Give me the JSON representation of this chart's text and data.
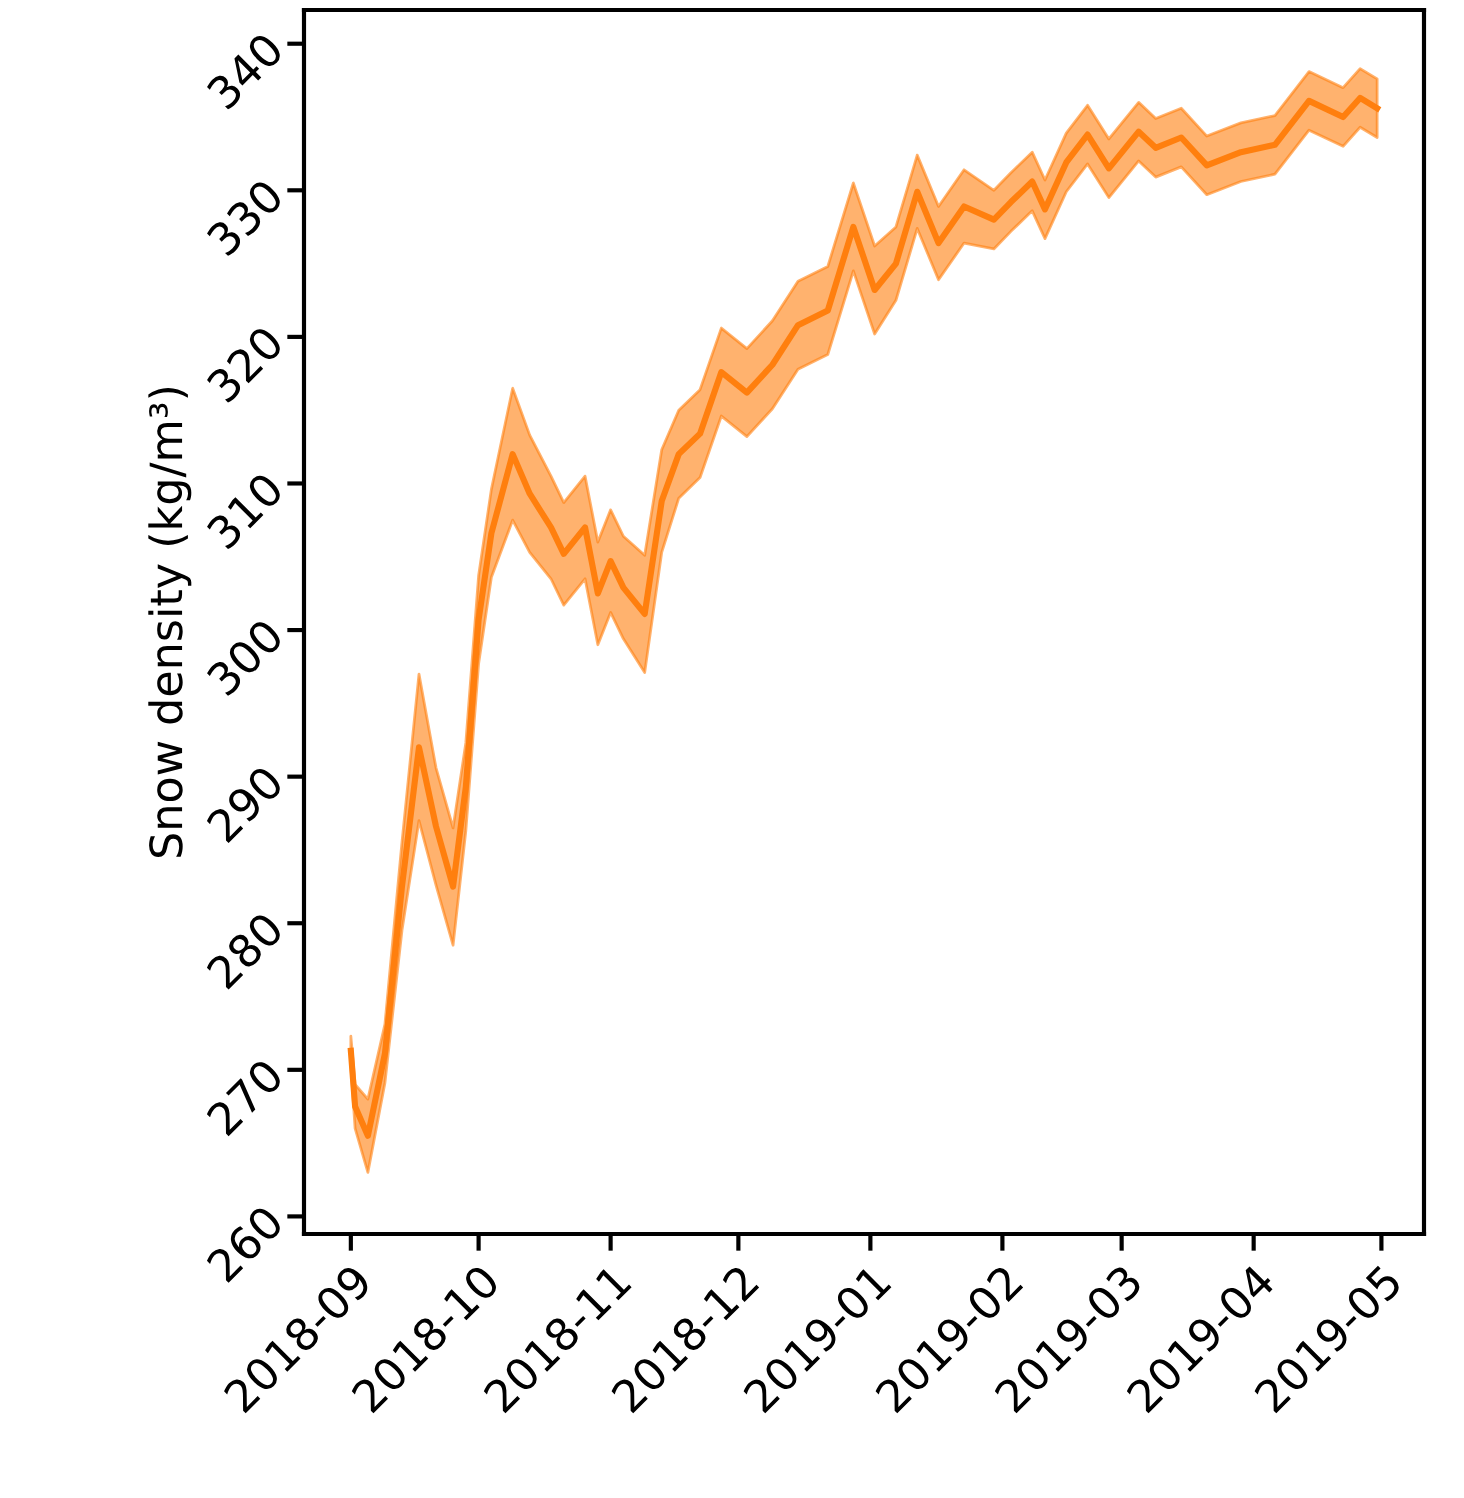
{
  "chart_data": {
    "type": "line",
    "ylabel": "Snow density (kg/m³)",
    "xlim": [
      "2018-08-21",
      "2019-05-11"
    ],
    "ylim": [
      258.8,
      342.3
    ],
    "xticks": [
      {
        "value": "2018-09-01",
        "label": "2018-09"
      },
      {
        "value": "2018-10-01",
        "label": "2018-10"
      },
      {
        "value": "2018-11-01",
        "label": "2018-11"
      },
      {
        "value": "2018-12-01",
        "label": "2018-12"
      },
      {
        "value": "2019-01-01",
        "label": "2019-01"
      },
      {
        "value": "2019-02-01",
        "label": "2019-02"
      },
      {
        "value": "2019-03-01",
        "label": "2019-03"
      },
      {
        "value": "2019-04-01",
        "label": "2019-04"
      },
      {
        "value": "2019-05-01",
        "label": "2019-05"
      }
    ],
    "yticks": [
      260,
      270,
      280,
      290,
      300,
      310,
      320,
      330,
      340
    ],
    "grid": false,
    "legend": false,
    "marker": "none",
    "line_style": "solid",
    "series": [
      {
        "color": "#ff7f0e",
        "x": [
          "2018-09-01",
          "2018-09-02",
          "2018-09-05",
          "2018-09-09",
          "2018-09-13",
          "2018-09-17",
          "2018-09-21",
          "2018-09-25",
          "2018-09-28",
          "2018-10-01",
          "2018-10-04",
          "2018-10-09",
          "2018-10-13",
          "2018-10-18",
          "2018-10-21",
          "2018-10-26",
          "2018-10-29",
          "2018-11-01",
          "2018-11-04",
          "2018-11-09",
          "2018-11-13",
          "2018-11-17",
          "2018-11-22",
          "2018-11-27",
          "2018-12-03",
          "2018-12-09",
          "2018-12-15",
          "2018-12-22",
          "2018-12-28",
          "2019-01-02",
          "2019-01-07",
          "2019-01-12",
          "2019-01-17",
          "2019-01-23",
          "2019-01-30",
          "2019-02-03",
          "2019-02-08",
          "2019-02-11",
          "2019-02-16",
          "2019-02-21",
          "2019-02-26",
          "2019-03-05",
          "2019-03-09",
          "2019-03-15",
          "2019-03-21",
          "2019-03-29",
          "2019-04-06",
          "2019-04-14",
          "2019-04-22",
          "2019-04-26",
          "2019-04-30"
        ],
        "values": [
          271.3,
          267.5,
          265.5,
          271.1,
          282.5,
          292.0,
          286.6,
          282.5,
          289.3,
          300.7,
          306.6,
          312.0,
          309.3,
          307.0,
          305.2,
          307.0,
          302.5,
          304.7,
          302.9,
          301.1,
          308.8,
          312.0,
          313.4,
          317.6,
          316.2,
          318.1,
          320.8,
          321.8,
          327.5,
          323.2,
          325.0,
          329.9,
          326.4,
          328.9,
          328.0,
          329.2,
          330.6,
          328.7,
          331.9,
          333.8,
          331.5,
          334.0,
          332.9,
          333.6,
          331.7,
          332.6,
          333.1,
          336.1,
          335.0,
          336.3,
          335.6
        ],
        "lower": [
          270.3,
          266.0,
          263.0,
          269.1,
          279.5,
          287.0,
          282.6,
          278.5,
          286.3,
          297.7,
          303.6,
          307.5,
          305.3,
          303.5,
          301.7,
          303.5,
          299.0,
          301.2,
          299.4,
          297.1,
          305.3,
          309.0,
          310.4,
          314.6,
          313.2,
          315.1,
          317.8,
          318.8,
          324.5,
          320.2,
          322.5,
          327.4,
          323.9,
          326.4,
          326.0,
          327.2,
          328.6,
          326.7,
          329.9,
          331.8,
          329.5,
          332.0,
          330.9,
          331.6,
          329.7,
          330.6,
          331.1,
          334.1,
          333.0,
          334.3,
          333.6
        ],
        "upper": [
          272.3,
          269.0,
          268.0,
          273.1,
          285.5,
          297.0,
          290.6,
          286.5,
          292.3,
          303.7,
          309.6,
          316.5,
          313.3,
          310.5,
          308.7,
          310.5,
          306.0,
          308.2,
          306.4,
          305.1,
          312.3,
          315.0,
          316.4,
          320.6,
          319.2,
          321.1,
          323.8,
          324.8,
          330.5,
          326.2,
          327.5,
          332.4,
          328.9,
          331.4,
          330.0,
          331.2,
          332.6,
          330.7,
          333.9,
          335.8,
          333.5,
          336.0,
          334.9,
          335.6,
          333.7,
          334.6,
          335.1,
          338.1,
          337.0,
          338.3,
          337.6
        ]
      }
    ]
  }
}
